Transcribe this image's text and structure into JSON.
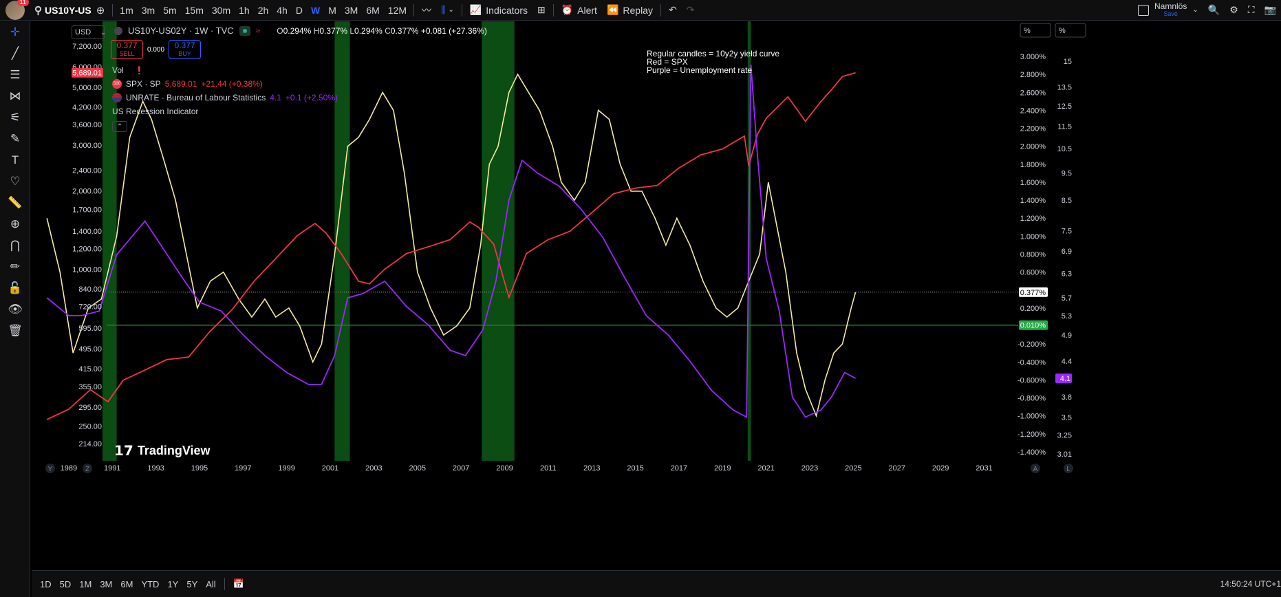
{
  "topbar": {
    "notifications": "11",
    "symbol": "US10Y-US",
    "intervals": [
      "1m",
      "3m",
      "5m",
      "15m",
      "30m",
      "1h",
      "2h",
      "4h",
      "D",
      "W",
      "M",
      "3M",
      "6M",
      "12M"
    ],
    "active_interval": "W",
    "indicators_label": "Indicators",
    "alert_label": "Alert",
    "replay_label": "Replay",
    "layout_name": "Namnlös",
    "save_label": "Save"
  },
  "legend": {
    "currency": "USD",
    "title": "US10Y-US02Y · 1W · TVC",
    "ohlc": {
      "o_label": "O",
      "o": "0.294%",
      "h_label": "H",
      "h": "0.377%",
      "l_label": "L",
      "l": "0.294%",
      "c_label": "C",
      "c": "0.377%",
      "chg": "+0.081 (+27.36%)"
    },
    "sell_price": "0.377",
    "sell_label": "SELL",
    "spread": "0.000",
    "buy_price": "0.377",
    "buy_label": "BUY",
    "vol_label": "Vol",
    "spx_label": "SPX · SP",
    "spx_value": "5,689.01",
    "spx_change": "+21.44 (+0.38%)",
    "unrate_label": "UNRATE · Bureau of Labour Statistics",
    "unrate_value": "4.1",
    "unrate_change": "+0.1 (+2.50%)",
    "recession_label": "US Recession Indicator"
  },
  "annotation": {
    "line1": "Regular candles = 10y2y yield curve",
    "line2": "Red = SPX",
    "line3": "Purple = Unemployment rate"
  },
  "watermark": "TradingView",
  "bottombar": {
    "ranges": [
      "1D",
      "5D",
      "1M",
      "3M",
      "6M",
      "YTD",
      "1Y",
      "5Y",
      "All"
    ],
    "clock": "14:50:24 UTC+1"
  },
  "axis_toggles": {
    "y": "Y",
    "z": "Z",
    "auto": "A",
    "log": "L"
  },
  "chart_data": {
    "type": "line",
    "x_ticks": [
      "1989",
      "1991",
      "1993",
      "1995",
      "1997",
      "1999",
      "2001",
      "2003",
      "2005",
      "2007",
      "2009",
      "2011",
      "2013",
      "2015",
      "2017",
      "2019",
      "2021",
      "2023",
      "2025",
      "2027",
      "2029",
      "2031"
    ],
    "x_range": [
      1987.3,
      2032.5
    ],
    "left_axis": {
      "scale": "log",
      "ticks": [
        "7,200.00",
        "6,000.00",
        "5,000.00",
        "4,200.00",
        "3,600.00",
        "3,000.00",
        "2,400.00",
        "2,000.00",
        "1,700.00",
        "1,400.00",
        "1,200.00",
        "1,000.00",
        "840.00",
        "720.00",
        "595.00",
        "495.00",
        "415.00",
        "355.00",
        "295.00",
        "250.00",
        "214.00"
      ],
      "tick_values": [
        7200,
        6000,
        5000,
        4200,
        3600,
        3000,
        2400,
        2000,
        1700,
        1400,
        1200,
        1000,
        840,
        720,
        595,
        495,
        415,
        355,
        295,
        250,
        214
      ],
      "current_label": "5,689.01"
    },
    "right_axis_1": {
      "unit": "%",
      "ticks": [
        "3.000%",
        "2.800%",
        "2.600%",
        "2.400%",
        "2.200%",
        "2.000%",
        "1.800%",
        "1.600%",
        "1.400%",
        "1.200%",
        "1.000%",
        "0.800%",
        "0.600%",
        "0.400%",
        "0.200%",
        "-0.200%",
        "-0.400%",
        "-0.600%",
        "-0.800%",
        "-1.000%",
        "-1.200%",
        "-1.400%"
      ],
      "tick_values": [
        3.0,
        2.8,
        2.6,
        2.4,
        2.2,
        2.0,
        1.8,
        1.6,
        1.4,
        1.2,
        1.0,
        0.8,
        0.6,
        0.4,
        0.2,
        -0.2,
        -0.4,
        -0.6,
        -0.8,
        -1.0,
        -1.2,
        -1.4
      ],
      "current_label": "0.377%",
      "current_value": 0.377,
      "hline_label": "0.010%",
      "hline_value": 0.01
    },
    "right_axis_2": {
      "unit": "%",
      "ticks": [
        "15",
        "13.5",
        "12.5",
        "11.5",
        "10.5",
        "9.5",
        "8.5",
        "7.5",
        "6.9",
        "6.3",
        "5.7",
        "5.3",
        "4.9",
        "4.4",
        "4.1",
        "3.8",
        "3.5",
        "3.25",
        "3.01"
      ],
      "tick_values": [
        15,
        13.5,
        12.5,
        11.5,
        10.5,
        9.5,
        8.5,
        7.5,
        6.9,
        6.3,
        5.7,
        5.3,
        4.9,
        4.4,
        4.1,
        3.8,
        3.5,
        3.25,
        3.01
      ],
      "current_label": "4.1"
    },
    "recessions": [
      [
        1990.55,
        1991.2
      ],
      [
        2001.2,
        2001.9
      ],
      [
        2007.95,
        2009.45
      ],
      [
        2020.15,
        2020.3
      ]
    ],
    "series": [
      {
        "name": "US10Y-US02Y",
        "color": "#f5e9a0",
        "axis": "pct",
        "x": [
          1988.0,
          1988.6,
          1989.2,
          1989.9,
          1990.5,
          1991.2,
          1991.8,
          1992.4,
          1992.8,
          1993.3,
          1993.9,
          1994.4,
          1994.9,
          1995.5,
          1996.1,
          1996.8,
          1997.4,
          1998.0,
          1998.5,
          1999.1,
          1999.6,
          2000.2,
          2000.6,
          2001.2,
          2001.8,
          2002.3,
          2002.8,
          2003.4,
          2003.9,
          2004.4,
          2005.0,
          2005.6,
          2006.2,
          2006.8,
          2007.4,
          2007.9,
          2008.3,
          2008.7,
          2009.2,
          2009.6,
          2010.1,
          2010.6,
          2011.2,
          2011.6,
          2012.2,
          2012.7,
          2013.3,
          2013.8,
          2014.3,
          2014.8,
          2015.3,
          2015.9,
          2016.4,
          2016.9,
          2017.5,
          2018.1,
          2018.7,
          2019.2,
          2019.7,
          2020.2,
          2020.7,
          2021.1,
          2021.5,
          2021.9,
          2022.4,
          2022.8,
          2023.3,
          2023.7,
          2024.1,
          2024.5,
          2024.9,
          2025.1
        ],
        "y": [
          1.2,
          0.6,
          -0.3,
          0.2,
          0.3,
          1.0,
          2.1,
          2.5,
          2.3,
          1.9,
          1.4,
          0.8,
          0.2,
          0.5,
          0.6,
          0.3,
          0.1,
          0.3,
          0.1,
          0.2,
          0.0,
          -0.4,
          -0.2,
          0.8,
          2.0,
          2.1,
          2.3,
          2.6,
          2.4,
          1.7,
          0.6,
          0.2,
          -0.1,
          0.0,
          0.2,
          0.9,
          1.8,
          2.0,
          2.6,
          2.8,
          2.6,
          2.4,
          2.0,
          1.6,
          1.4,
          1.6,
          2.4,
          2.3,
          1.8,
          1.5,
          1.5,
          1.2,
          0.9,
          1.2,
          0.9,
          0.5,
          0.2,
          0.1,
          0.2,
          0.5,
          0.8,
          1.6,
          1.1,
          0.6,
          -0.3,
          -0.7,
          -1.0,
          -0.6,
          -0.3,
          -0.2,
          0.2,
          0.377
        ]
      },
      {
        "name": "SPX",
        "color": "#f23645",
        "axis": "log",
        "x": [
          1988.0,
          1989.0,
          1990.0,
          1990.8,
          1991.5,
          1992.5,
          1993.5,
          1994.5,
          1995.5,
          1996.5,
          1997.5,
          1998.5,
          1999.5,
          2000.3,
          2000.8,
          2001.5,
          2002.3,
          2002.8,
          2003.5,
          2004.5,
          2005.5,
          2006.5,
          2007.4,
          2007.8,
          2008.5,
          2009.2,
          2010.0,
          2011.0,
          2012.0,
          2013.0,
          2014.0,
          2015.0,
          2016.0,
          2017.0,
          2018.0,
          2019.0,
          2020.0,
          2020.2,
          2020.6,
          2021.0,
          2022.0,
          2022.8,
          2023.5,
          2024.0,
          2024.5,
          2025.1
        ],
        "y": [
          265,
          290,
          345,
          310,
          375,
          410,
          450,
          460,
          580,
          700,
          900,
          1100,
          1350,
          1500,
          1380,
          1150,
          900,
          880,
          1000,
          1150,
          1220,
          1300,
          1520,
          1450,
          1250,
          780,
          1150,
          1300,
          1400,
          1650,
          1950,
          2050,
          2100,
          2450,
          2750,
          2900,
          3250,
          2500,
          3300,
          3800,
          4600,
          3700,
          4400,
          4900,
          5500,
          5689
        ]
      },
      {
        "name": "UNRATE",
        "color": "#9c27ff",
        "axis": "unrate",
        "x": [
          1988.0,
          1989.0,
          1989.6,
          1990.4,
          1991.2,
          1992.0,
          1992.5,
          1993.2,
          1994.2,
          1995.0,
          1996.0,
          1997.0,
          1998.0,
          1999.0,
          2000.0,
          2000.6,
          2001.2,
          2001.8,
          2002.5,
          2003.5,
          2004.5,
          2005.5,
          2006.5,
          2007.2,
          2008.0,
          2008.6,
          2009.2,
          2009.8,
          2010.5,
          2011.5,
          2012.5,
          2013.5,
          2014.5,
          2015.5,
          2016.5,
          2017.5,
          2018.5,
          2019.5,
          2020.1,
          2020.3,
          2020.6,
          2021.0,
          2021.6,
          2022.2,
          2022.8,
          2023.5,
          2024.0,
          2024.6,
          2025.1
        ],
        "y": [
          5.7,
          5.3,
          5.3,
          5.4,
          6.8,
          7.4,
          7.8,
          7.1,
          6.2,
          5.6,
          5.4,
          4.9,
          4.5,
          4.2,
          4.0,
          4.0,
          4.5,
          5.7,
          5.8,
          6.1,
          5.5,
          5.1,
          4.6,
          4.5,
          5.0,
          6.1,
          8.5,
          10.0,
          9.5,
          9.0,
          8.2,
          7.3,
          6.2,
          5.3,
          4.9,
          4.4,
          3.9,
          3.6,
          3.5,
          14.8,
          10.2,
          6.7,
          5.4,
          3.8,
          3.5,
          3.6,
          3.8,
          4.2,
          4.1
        ]
      }
    ]
  }
}
